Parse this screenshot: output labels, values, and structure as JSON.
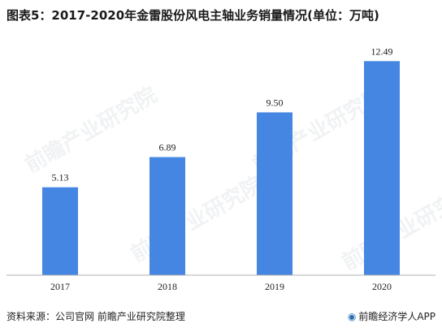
{
  "title": "图表5：2017-2020年金雷股份风电主轴业务销量情况(单位：万吨)",
  "source": "资料来源：公司官网 前瞻产业研究院整理",
  "brand": "前瞻经济学人APP",
  "brand_icon": "circle-logo-icon",
  "watermark": "前瞻产业研究院",
  "colors": {
    "bar": "#4486e2",
    "axis": "#b0b0b0",
    "text": "#222222"
  },
  "chart_data": {
    "type": "bar",
    "categories": [
      "2017",
      "2018",
      "2019",
      "2020"
    ],
    "values": [
      5.13,
      6.89,
      9.5,
      12.49
    ],
    "value_labels": [
      "5.13",
      "6.89",
      "9.50",
      "12.49"
    ],
    "ylim": [
      0,
      13.5
    ],
    "grid": false,
    "legend": "none"
  }
}
